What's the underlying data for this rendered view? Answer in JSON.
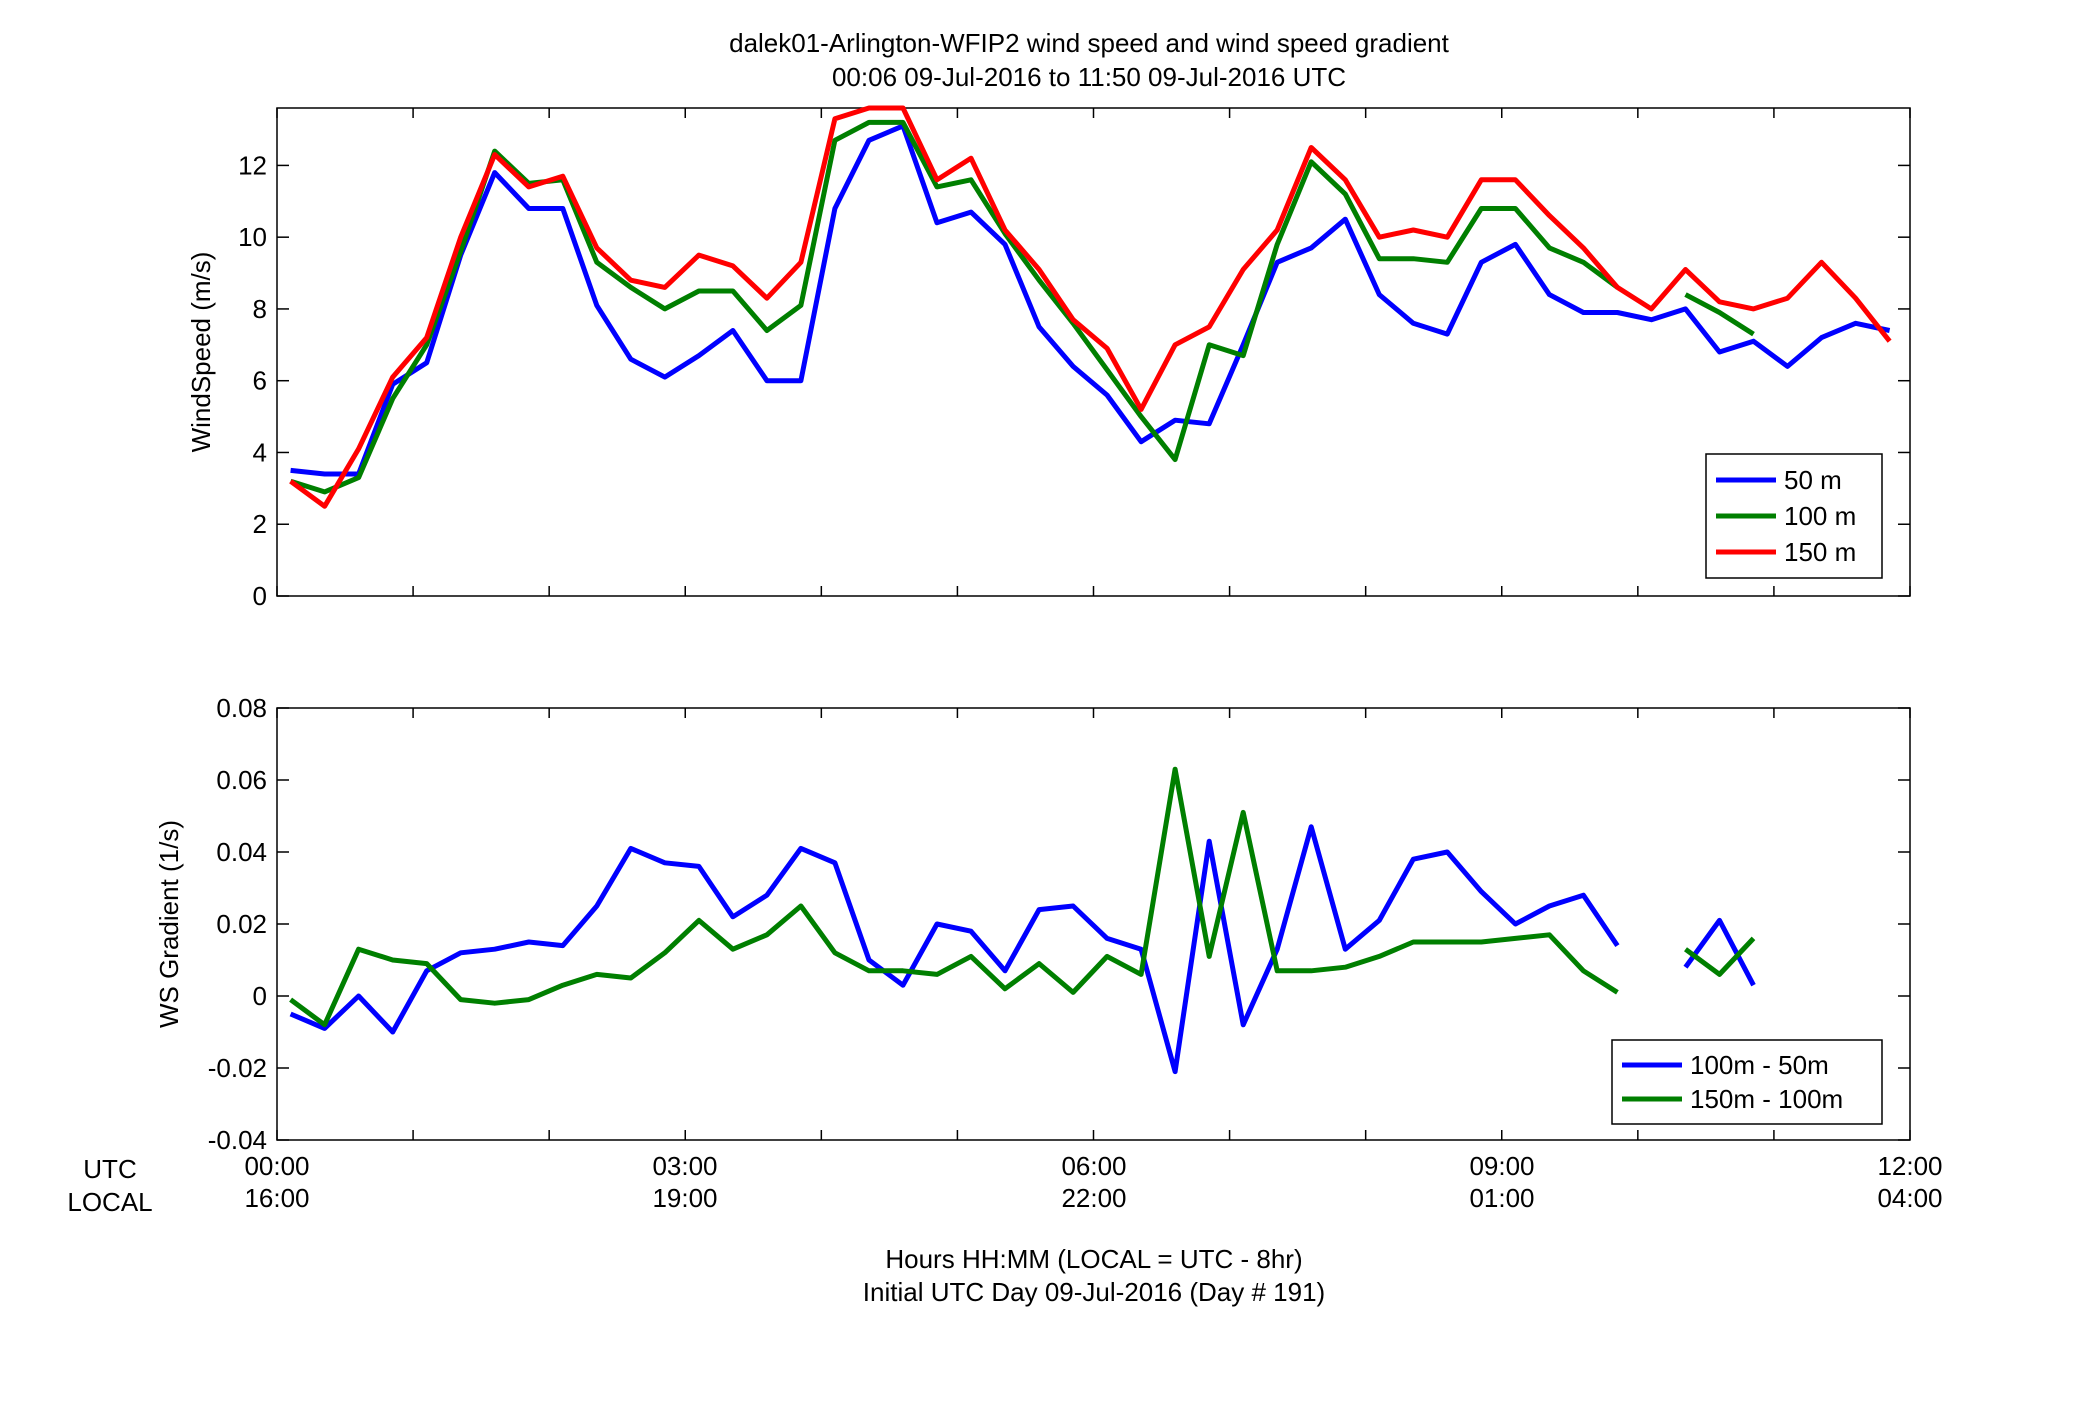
{
  "figure": {
    "title_line1": "dalek01-Arlington-WFIP2  wind speed and wind speed gradient",
    "title_line2": "00:06 09-Jul-2016 to 11:50 09-Jul-2016  UTC",
    "xlabel_line1": "Hours HH:MM  (LOCAL = UTC - 8hr)",
    "xlabel_line2": "Initial UTC Day 09-Jul-2016 (Day # 191)",
    "row_label_utc": "UTC",
    "row_label_local": "LOCAL",
    "utc_ticks": [
      "00:00",
      "03:00",
      "06:00",
      "09:00",
      "12:00"
    ],
    "local_ticks": [
      "16:00",
      "19:00",
      "22:00",
      "01:00",
      "04:00"
    ]
  },
  "chart_data": [
    {
      "type": "line",
      "title": "",
      "xlabel": "",
      "ylabel": "WindSpeed (m/s)",
      "xlim": [
        0,
        12
      ],
      "ylim": [
        0,
        13.6
      ],
      "yticks": [
        0,
        2,
        4,
        6,
        8,
        10,
        12
      ],
      "xticks": [
        0,
        1,
        2,
        3,
        4,
        5,
        6,
        7,
        8,
        9,
        10,
        11,
        12
      ],
      "grid": false,
      "legend": "bottom-right",
      "x": [
        0.1,
        0.35,
        0.6,
        0.85,
        1.1,
        1.35,
        1.6,
        1.85,
        2.1,
        2.35,
        2.6,
        2.85,
        3.1,
        3.35,
        3.6,
        3.85,
        4.1,
        4.35,
        4.6,
        4.85,
        5.1,
        5.35,
        5.6,
        5.85,
        6.1,
        6.35,
        6.6,
        6.85,
        7.1,
        7.35,
        7.6,
        7.85,
        8.1,
        8.35,
        8.6,
        8.85,
        9.1,
        9.35,
        9.6,
        9.85,
        10.1,
        10.35,
        10.6,
        10.85,
        11.1,
        11.35,
        11.6,
        11.85
      ],
      "series": [
        {
          "name": "50 m",
          "color": "#0000ff",
          "values": [
            3.5,
            3.4,
            3.4,
            5.9,
            6.5,
            9.5,
            11.8,
            10.8,
            10.8,
            8.1,
            6.6,
            6.1,
            6.7,
            7.4,
            6.0,
            6.0,
            10.8,
            12.7,
            13.1,
            10.4,
            10.7,
            9.8,
            7.5,
            6.4,
            5.6,
            4.3,
            4.9,
            4.8,
            7.0,
            9.3,
            9.7,
            10.5,
            8.4,
            7.6,
            7.3,
            9.3,
            9.8,
            8.4,
            7.9,
            7.9,
            7.7,
            8.0,
            6.8,
            7.1,
            6.4,
            7.2,
            7.6,
            7.4
          ]
        },
        {
          "name": "100 m",
          "color": "#007f00",
          "values": [
            3.2,
            2.9,
            3.3,
            5.5,
            7.0,
            9.6,
            12.4,
            11.5,
            11.6,
            9.3,
            8.6,
            8.0,
            8.5,
            8.5,
            7.4,
            8.1,
            12.7,
            13.2,
            13.2,
            11.4,
            11.6,
            10.1,
            8.8,
            7.6,
            6.3,
            5.0,
            3.8,
            7.0,
            6.7,
            9.8,
            12.1,
            11.2,
            9.4,
            9.4,
            9.3,
            10.8,
            10.8,
            9.7,
            9.3,
            8.6,
            null,
            8.4,
            7.9,
            7.3,
            null,
            null,
            null,
            null
          ]
        },
        {
          "name": "150 m",
          "color": "#ff0000",
          "values": [
            3.2,
            2.5,
            4.1,
            6.1,
            7.2,
            10.0,
            12.3,
            11.4,
            11.7,
            9.7,
            8.8,
            8.6,
            9.5,
            9.2,
            8.3,
            9.3,
            13.3,
            13.6,
            13.6,
            11.6,
            12.2,
            10.2,
            9.1,
            7.7,
            6.9,
            5.2,
            7.0,
            7.5,
            9.1,
            10.2,
            12.5,
            11.6,
            10.0,
            10.2,
            10.0,
            11.6,
            11.6,
            10.6,
            9.7,
            8.6,
            8.0,
            9.1,
            8.2,
            8.0,
            8.3,
            9.3,
            8.3,
            7.1
          ]
        }
      ]
    },
    {
      "type": "line",
      "title": "",
      "xlabel": "",
      "ylabel": "WS Gradient (1/s)",
      "xlim": [
        0,
        12
      ],
      "ylim": [
        -0.04,
        0.08
      ],
      "yticks": [
        -0.04,
        -0.02,
        0,
        0.02,
        0.04,
        0.06,
        0.08
      ],
      "ytick_labels": [
        "-0.04",
        "-0.02",
        "0",
        "0.02",
        "0.04",
        "0.06",
        "0.08"
      ],
      "xticks": [
        0,
        1,
        2,
        3,
        4,
        5,
        6,
        7,
        8,
        9,
        10,
        11,
        12
      ],
      "grid": false,
      "legend": "bottom-right",
      "x": [
        0.1,
        0.35,
        0.6,
        0.85,
        1.1,
        1.35,
        1.6,
        1.85,
        2.1,
        2.35,
        2.6,
        2.85,
        3.1,
        3.35,
        3.6,
        3.85,
        4.1,
        4.35,
        4.6,
        4.85,
        5.1,
        5.35,
        5.6,
        5.85,
        6.1,
        6.35,
        6.6,
        6.85,
        7.1,
        7.35,
        7.6,
        7.85,
        8.1,
        8.35,
        8.6,
        8.85,
        9.1,
        9.35,
        9.6,
        9.85,
        10.1,
        10.35,
        10.6,
        10.85
      ],
      "series": [
        {
          "name": "100m - 50m",
          "color": "#0000ff",
          "values": [
            -0.005,
            -0.009,
            0.0,
            -0.01,
            0.007,
            0.012,
            0.013,
            0.015,
            0.014,
            0.025,
            0.041,
            0.037,
            0.036,
            0.022,
            0.028,
            0.041,
            0.037,
            0.01,
            0.003,
            0.02,
            0.018,
            0.007,
            0.024,
            0.025,
            0.016,
            0.013,
            -0.021,
            0.043,
            -0.008,
            0.013,
            0.047,
            0.013,
            0.021,
            0.038,
            0.04,
            0.029,
            0.02,
            0.025,
            0.028,
            0.014,
            null,
            0.008,
            0.021,
            0.003
          ]
        },
        {
          "name": "150m - 100m",
          "color": "#007f00",
          "values": [
            -0.001,
            -0.008,
            0.013,
            0.01,
            0.009,
            -0.001,
            -0.002,
            -0.001,
            0.003,
            0.006,
            0.005,
            0.012,
            0.021,
            0.013,
            0.017,
            0.025,
            0.012,
            0.007,
            0.007,
            0.006,
            0.011,
            0.002,
            0.009,
            0.001,
            0.011,
            0.006,
            0.063,
            0.011,
            0.051,
            0.007,
            0.007,
            0.008,
            0.011,
            0.015,
            0.015,
            0.015,
            0.016,
            0.017,
            0.007,
            0.001,
            null,
            0.013,
            0.006,
            0.016
          ]
        }
      ]
    }
  ]
}
